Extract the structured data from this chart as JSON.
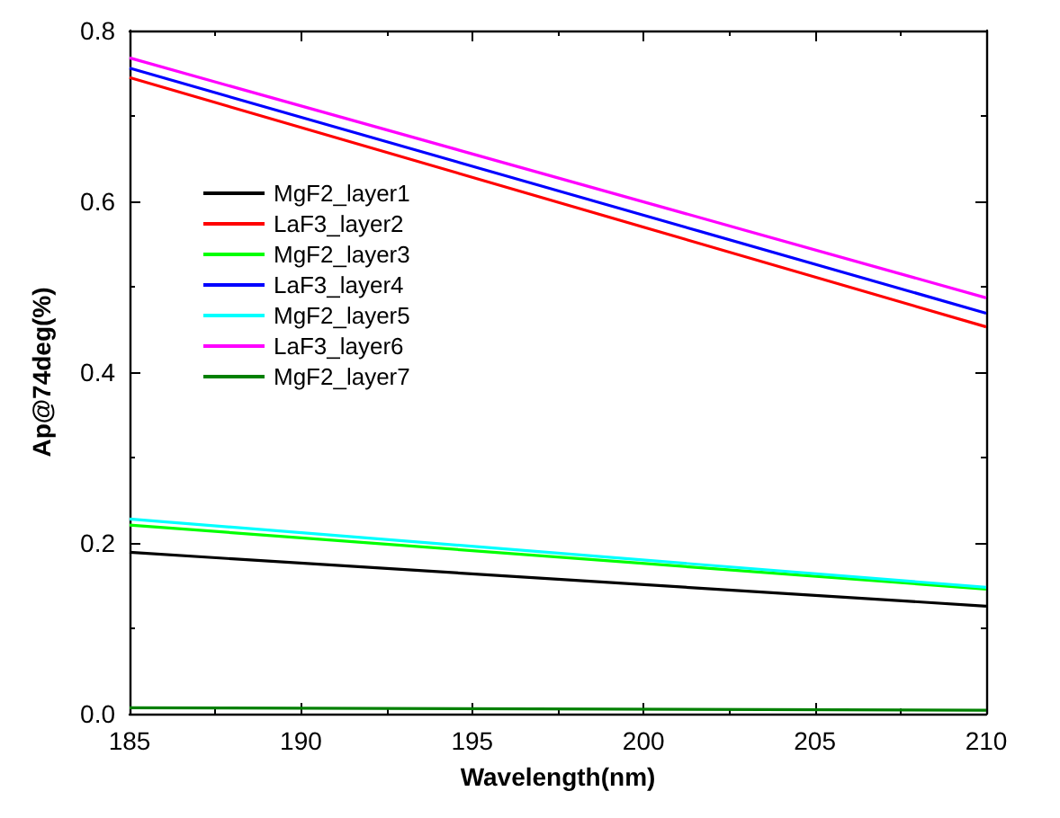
{
  "chart_data": {
    "type": "line",
    "xlabel": "Wavelength(nm)",
    "ylabel": "Ap@74deg(%)",
    "x": [
      185,
      210
    ],
    "xlim": [
      185,
      210
    ],
    "xticks": [
      185,
      190,
      195,
      200,
      205,
      210
    ],
    "ylim": [
      0,
      0.8
    ],
    "yticks": [
      {
        "value": 0,
        "label": "0.0"
      },
      {
        "value": 0.2,
        "label": "0.2"
      },
      {
        "value": 0.4,
        "label": "0.4"
      },
      {
        "value": 0.6,
        "label": "0.6"
      },
      {
        "value": 0.8,
        "label": "0.8"
      }
    ],
    "grid": false,
    "legend": "top left",
    "marker": "none",
    "line_style": "solid",
    "series": [
      {
        "name": "MgF2_layer1",
        "color": "#000000",
        "values": [
          0.189,
          0.126
        ]
      },
      {
        "name": "LaF3_layer2",
        "color": "#ff0000",
        "values": [
          0.745,
          0.453
        ]
      },
      {
        "name": "MgF2_layer3",
        "color": "#00ff00",
        "values": [
          0.221,
          0.146
        ]
      },
      {
        "name": "LaF3_layer4",
        "color": "#0000ff",
        "values": [
          0.756,
          0.469
        ]
      },
      {
        "name": "MgF2_layer5",
        "color": "#00ffff",
        "values": [
          0.228,
          0.148
        ]
      },
      {
        "name": "LaF3_layer6",
        "color": "#ff00ff",
        "values": [
          0.768,
          0.487
        ]
      },
      {
        "name": "MgF2_layer7",
        "color": "#008000",
        "values": [
          0.007,
          0.004
        ]
      }
    ]
  }
}
